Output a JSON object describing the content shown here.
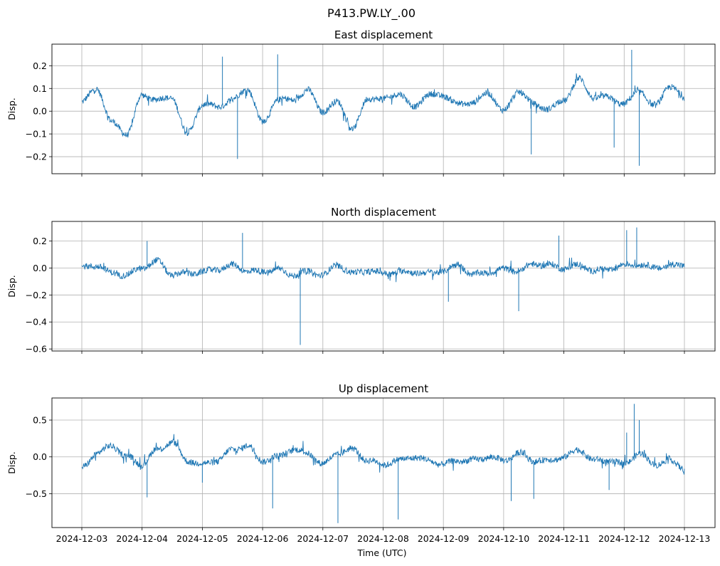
{
  "figure": {
    "suptitle": "P413.PW.LY_.00",
    "xlabel": "Time (UTC)"
  },
  "chart_data": [
    {
      "type": "line",
      "title": "East displacement",
      "ylabel": "Disp.",
      "ylim": [
        -0.275,
        0.295
      ],
      "yticks": [
        -0.2,
        -0.1,
        0.0,
        0.1,
        0.2
      ],
      "ytick_labels": [
        "−0.2",
        "−0.1",
        "0.0",
        "0.1",
        "0.2"
      ],
      "x_tick_labels": [
        "2024-12-03",
        "2024-12-04",
        "2024-12-05",
        "2024-12-06",
        "2024-12-07",
        "2024-12-08",
        "2024-12-09",
        "2024-12-10",
        "2024-12-11",
        "2024-12-12",
        "2024-12-13"
      ],
      "show_x_tick_labels": false,
      "grid": true,
      "color": "#1f77b4",
      "series": [
        {
          "x": [
            "2024-12-03T00:00",
            "2024-12-03T06:00",
            "2024-12-03T12:00",
            "2024-12-03T18:00",
            "2024-12-04T00:00",
            "2024-12-04T06:00",
            "2024-12-04T12:00",
            "2024-12-04T18:00",
            "2024-12-05T00:00",
            "2024-12-05T06:00",
            "2024-12-05T12:00",
            "2024-12-05T18:00",
            "2024-12-06T00:00",
            "2024-12-06T06:00",
            "2024-12-06T12:00",
            "2024-12-06T18:00",
            "2024-12-07T00:00",
            "2024-12-07T06:00",
            "2024-12-07T12:00",
            "2024-12-07T18:00",
            "2024-12-08T00:00",
            "2024-12-08T06:00",
            "2024-12-08T12:00",
            "2024-12-08T18:00",
            "2024-12-09T00:00",
            "2024-12-09T06:00",
            "2024-12-09T12:00",
            "2024-12-09T18:00",
            "2024-12-10T00:00",
            "2024-12-10T06:00",
            "2024-12-10T12:00",
            "2024-12-10T18:00",
            "2024-12-11T00:00",
            "2024-12-11T06:00",
            "2024-12-11T12:00",
            "2024-12-11T18:00",
            "2024-12-12T00:00",
            "2024-12-12T06:00",
            "2024-12-12T12:00",
            "2024-12-12T18:00",
            "2024-12-13T00:00"
          ],
          "y": [
            0.04,
            0.1,
            -0.05,
            -0.1,
            0.07,
            0.05,
            0.06,
            -0.1,
            0.03,
            0.02,
            0.05,
            0.1,
            -0.05,
            0.05,
            0.05,
            0.09,
            0.0,
            0.04,
            -0.08,
            0.06,
            0.05,
            0.08,
            0.02,
            0.07,
            0.07,
            0.03,
            0.04,
            0.08,
            0.0,
            0.09,
            0.03,
            0.01,
            0.05,
            0.14,
            0.06,
            0.06,
            0.03,
            0.09,
            0.02,
            0.11,
            0.06
          ],
          "spikes": [
            [
              "2024-12-05T08:00",
              0.24
            ],
            [
              "2024-12-05T14:00",
              -0.21
            ],
            [
              "2024-12-06T06:00",
              0.25
            ],
            [
              "2024-12-10T11:00",
              -0.19
            ],
            [
              "2024-12-11T20:00",
              -0.16
            ],
            [
              "2024-12-12T03:00",
              0.27
            ],
            [
              "2024-12-12T06:00",
              -0.24
            ]
          ]
        }
      ]
    },
    {
      "type": "line",
      "title": "North displacement",
      "ylabel": "Disp.",
      "ylim": [
        -0.615,
        0.345
      ],
      "yticks": [
        -0.6,
        -0.4,
        -0.2,
        0.0,
        0.2
      ],
      "ytick_labels": [
        "−0.6",
        "−0.4",
        "−0.2",
        "0.0",
        "0.2"
      ],
      "x_tick_labels": [
        "2024-12-03",
        "2024-12-04",
        "2024-12-05",
        "2024-12-06",
        "2024-12-07",
        "2024-12-08",
        "2024-12-09",
        "2024-12-10",
        "2024-12-11",
        "2024-12-12",
        "2024-12-13"
      ],
      "show_x_tick_labels": false,
      "grid": true,
      "color": "#1f77b4",
      "series": [
        {
          "x": [
            "2024-12-03T00:00",
            "2024-12-03T06:00",
            "2024-12-03T12:00",
            "2024-12-03T18:00",
            "2024-12-04T00:00",
            "2024-12-04T06:00",
            "2024-12-04T12:00",
            "2024-12-04T18:00",
            "2024-12-05T00:00",
            "2024-12-05T06:00",
            "2024-12-05T12:00",
            "2024-12-05T18:00",
            "2024-12-06T00:00",
            "2024-12-06T06:00",
            "2024-12-06T12:00",
            "2024-12-06T18:00",
            "2024-12-07T00:00",
            "2024-12-07T06:00",
            "2024-12-07T12:00",
            "2024-12-07T18:00",
            "2024-12-08T00:00",
            "2024-12-08T06:00",
            "2024-12-08T12:00",
            "2024-12-08T18:00",
            "2024-12-09T00:00",
            "2024-12-09T06:00",
            "2024-12-09T12:00",
            "2024-12-09T18:00",
            "2024-12-10T00:00",
            "2024-12-10T06:00",
            "2024-12-10T12:00",
            "2024-12-10T18:00",
            "2024-12-11T00:00",
            "2024-12-11T06:00",
            "2024-12-11T12:00",
            "2024-12-11T18:00",
            "2024-12-12T00:00",
            "2024-12-12T06:00",
            "2024-12-12T12:00",
            "2024-12-12T18:00",
            "2024-12-13T00:00"
          ],
          "y": [
            0.0,
            0.02,
            -0.04,
            -0.05,
            0.0,
            0.05,
            -0.05,
            -0.04,
            -0.03,
            -0.01,
            0.02,
            -0.02,
            -0.03,
            -0.01,
            -0.05,
            -0.03,
            -0.05,
            0.02,
            -0.04,
            -0.02,
            -0.04,
            -0.03,
            -0.03,
            -0.04,
            -0.02,
            0.02,
            -0.05,
            -0.03,
            -0.01,
            -0.02,
            0.03,
            0.02,
            0.0,
            0.02,
            -0.02,
            -0.01,
            0.02,
            0.03,
            0.0,
            0.02,
            0.02
          ],
          "spikes": [
            [
              "2024-12-04T02:00",
              0.2
            ],
            [
              "2024-12-05T16:00",
              0.26
            ],
            [
              "2024-12-06T15:00",
              -0.57
            ],
            [
              "2024-12-09T02:00",
              -0.25
            ],
            [
              "2024-12-10T06:00",
              -0.32
            ],
            [
              "2024-12-10T22:00",
              0.24
            ],
            [
              "2024-12-12T01:00",
              0.28
            ],
            [
              "2024-12-12T05:00",
              0.3
            ]
          ]
        }
      ]
    },
    {
      "type": "line",
      "title": "Up displacement",
      "ylabel": "Disp.",
      "ylim": [
        -0.96,
        0.8
      ],
      "yticks": [
        -0.5,
        0.0,
        0.5
      ],
      "ytick_labels": [
        "−0.5",
        "0.0",
        "0.5"
      ],
      "x_tick_labels": [
        "2024-12-03",
        "2024-12-04",
        "2024-12-05",
        "2024-12-06",
        "2024-12-07",
        "2024-12-08",
        "2024-12-09",
        "2024-12-10",
        "2024-12-11",
        "2024-12-12",
        "2024-12-13"
      ],
      "show_x_tick_labels": true,
      "grid": true,
      "color": "#1f77b4",
      "series": [
        {
          "x": [
            "2024-12-03T00:00",
            "2024-12-03T06:00",
            "2024-12-03T12:00",
            "2024-12-03T18:00",
            "2024-12-04T00:00",
            "2024-12-04T06:00",
            "2024-12-04T12:00",
            "2024-12-04T18:00",
            "2024-12-05T00:00",
            "2024-12-05T06:00",
            "2024-12-05T12:00",
            "2024-12-05T18:00",
            "2024-12-06T00:00",
            "2024-12-06T06:00",
            "2024-12-06T12:00",
            "2024-12-06T18:00",
            "2024-12-07T00:00",
            "2024-12-07T06:00",
            "2024-12-07T12:00",
            "2024-12-07T18:00",
            "2024-12-08T00:00",
            "2024-12-08T06:00",
            "2024-12-08T12:00",
            "2024-12-08T18:00",
            "2024-12-09T00:00",
            "2024-12-09T06:00",
            "2024-12-09T12:00",
            "2024-12-09T18:00",
            "2024-12-10T00:00",
            "2024-12-10T06:00",
            "2024-12-10T12:00",
            "2024-12-10T18:00",
            "2024-12-11T00:00",
            "2024-12-11T06:00",
            "2024-12-11T12:00",
            "2024-12-11T18:00",
            "2024-12-12T00:00",
            "2024-12-12T06:00",
            "2024-12-12T12:00",
            "2024-12-12T18:00",
            "2024-12-13T00:00"
          ],
          "y": [
            -0.15,
            0.05,
            0.15,
            0.0,
            -0.1,
            0.1,
            0.2,
            -0.05,
            -0.1,
            -0.05,
            0.1,
            0.15,
            -0.05,
            0.0,
            0.1,
            0.05,
            -0.1,
            0.05,
            0.1,
            -0.05,
            -0.1,
            -0.05,
            0.0,
            -0.05,
            -0.1,
            -0.05,
            -0.05,
            0.0,
            -0.05,
            0.05,
            -0.05,
            -0.05,
            0.0,
            0.1,
            -0.05,
            -0.05,
            -0.1,
            0.05,
            -0.1,
            -0.05,
            -0.15
          ],
          "spikes": [
            [
              "2024-12-04T02:00",
              -0.55
            ],
            [
              "2024-12-05T00:00",
              -0.35
            ],
            [
              "2024-12-06T04:00",
              -0.7
            ],
            [
              "2024-12-07T06:00",
              -0.9
            ],
            [
              "2024-12-08T06:00",
              -0.85
            ],
            [
              "2024-12-10T03:00",
              -0.6
            ],
            [
              "2024-12-10T12:00",
              -0.57
            ],
            [
              "2024-12-11T18:00",
              -0.45
            ],
            [
              "2024-12-12T01:00",
              0.33
            ],
            [
              "2024-12-12T04:00",
              0.72
            ],
            [
              "2024-12-12T06:00",
              0.5
            ]
          ]
        }
      ]
    }
  ]
}
